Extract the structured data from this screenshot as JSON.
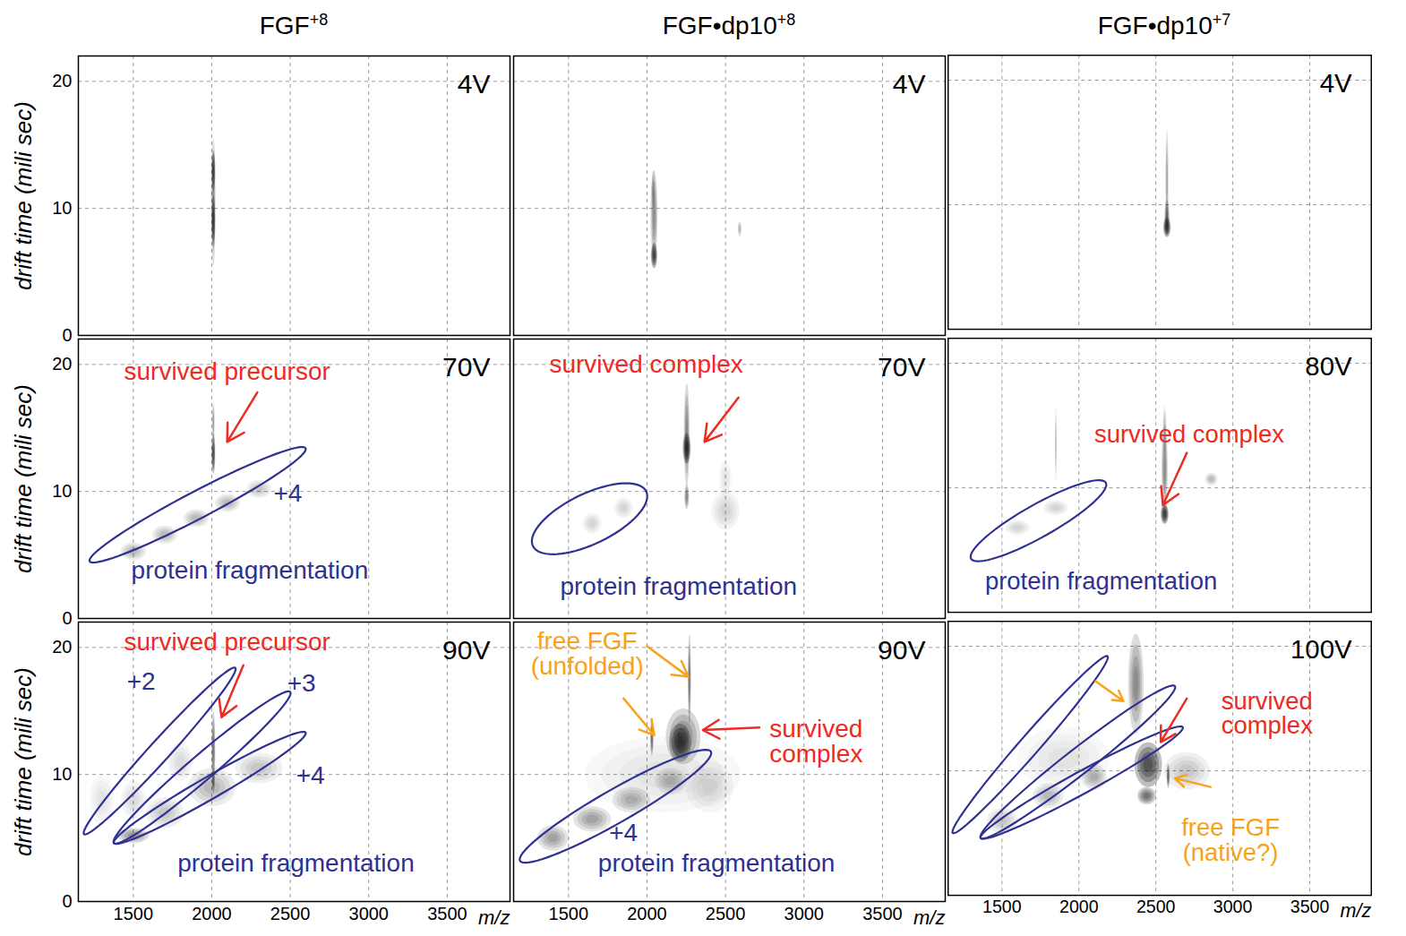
{
  "chart_data": [
    {
      "type": "density",
      "title": "FGF+8",
      "y_label": "drift time (mili sec)",
      "corner_label": "4V",
      "xlim": [
        1150,
        3900
      ],
      "ylim": [
        0,
        22
      ],
      "xticks": [
        1500,
        2000,
        2500,
        3000,
        3500
      ],
      "yticks": [
        0,
        10,
        20
      ],
      "grid": true,
      "tick_labels": "y",
      "color": "#111111",
      "spots": [
        {
          "x": 2010,
          "y": 10.5,
          "rx": 14,
          "ry": 5,
          "intensity": 0.45
        },
        {
          "x": 2010,
          "y": 13,
          "rx": 12,
          "ry": 1.6,
          "intensity": 0.8
        },
        {
          "x": 2010,
          "y": 9,
          "rx": 12,
          "ry": 2,
          "intensity": 0.85
        }
      ]
    },
    {
      "type": "density",
      "title": "FGF•dp10+8",
      "corner_label": "4V",
      "xlim": [
        1150,
        3900
      ],
      "ylim": [
        0,
        22
      ],
      "xticks": [
        1500,
        2000,
        2500,
        3000,
        3500
      ],
      "yticks": [
        0,
        10,
        20
      ],
      "grid": true,
      "tick_labels": false,
      "color": "#111111",
      "spots": [
        {
          "x": 2045,
          "y": 9.5,
          "rx": 22,
          "ry": 3.5,
          "intensity": 0.45
        },
        {
          "x": 2045,
          "y": 6.3,
          "rx": 20,
          "ry": 1.0,
          "intensity": 0.95
        },
        {
          "x": 2040,
          "y": 11.5,
          "rx": 12,
          "ry": 1.5,
          "intensity": 0.3
        },
        {
          "x": 2590,
          "y": 8.4,
          "rx": 12,
          "ry": 0.6,
          "intensity": 0.3
        }
      ]
    },
    {
      "type": "density",
      "title": "FGF•dp10+7",
      "corner_label": "4V",
      "xlim": [
        1150,
        3900
      ],
      "ylim": [
        0,
        22
      ],
      "xticks": [
        1500,
        2000,
        2500,
        3000,
        3500
      ],
      "yticks": [
        0,
        10,
        20
      ],
      "grid": true,
      "tick_labels": false,
      "color": "#111111",
      "spots": [
        {
          "x": 2572,
          "y": 12,
          "rx": 10,
          "ry": 4,
          "intensity": 0.35
        },
        {
          "x": 2572,
          "y": 8.2,
          "rx": 24,
          "ry": 0.8,
          "intensity": 0.95
        },
        {
          "x": 2572,
          "y": 9,
          "rx": 16,
          "ry": 1.4,
          "intensity": 0.6
        }
      ]
    },
    {
      "type": "density",
      "y_label": "drift time (mili sec)",
      "corner_label": "70V",
      "xlim": [
        1150,
        3900
      ],
      "ylim": [
        0,
        22
      ],
      "xticks": [
        1500,
        2000,
        2500,
        3000,
        3500
      ],
      "yticks": [
        0,
        10,
        20
      ],
      "grid": true,
      "tick_labels": "y",
      "color": "#111111",
      "spots": [
        {
          "x": 2010,
          "y": 13,
          "rx": 12,
          "ry": 1.6,
          "intensity": 0.9
        },
        {
          "x": 2010,
          "y": 15.5,
          "rx": 8,
          "ry": 1.5,
          "intensity": 0.4
        },
        {
          "x": 1500,
          "y": 5.3,
          "rx": 80,
          "ry": 0.7,
          "intensity": 0.25
        },
        {
          "x": 1700,
          "y": 6.6,
          "rx": 80,
          "ry": 0.7,
          "intensity": 0.25
        },
        {
          "x": 1900,
          "y": 7.9,
          "rx": 80,
          "ry": 0.7,
          "intensity": 0.25
        },
        {
          "x": 2100,
          "y": 9.1,
          "rx": 80,
          "ry": 0.7,
          "intensity": 0.25
        },
        {
          "x": 2300,
          "y": 10.2,
          "rx": 80,
          "ry": 0.7,
          "intensity": 0.2
        }
      ],
      "regions": [
        {
          "x1": 1222,
          "y1": 4.5,
          "x2": 2598,
          "y2": 13.4,
          "half_width": 1.2,
          "color": "#2e3192"
        }
      ],
      "annotations": [
        {
          "text": "survived precursor",
          "x": 2098,
          "y": 19.4,
          "color": "#ee2a24"
        },
        {
          "text": "+4",
          "x": 2485,
          "y": 9.8,
          "color": "#2e3192"
        },
        {
          "text": "protein fragmentation",
          "x": 2242,
          "y": 3.8,
          "color": "#2e3192"
        }
      ],
      "arrows": [
        {
          "x1": 2290,
          "y1": 17.8,
          "x2": 2098,
          "y2": 13.9,
          "color": "#ee2a24"
        }
      ]
    },
    {
      "type": "density",
      "corner_label": "70V",
      "xlim": [
        1150,
        3900
      ],
      "ylim": [
        0,
        22
      ],
      "xticks": [
        1500,
        2000,
        2500,
        3000,
        3500
      ],
      "yticks": [
        0,
        10,
        20
      ],
      "grid": true,
      "tick_labels": false,
      "color": "#111111",
      "spots": [
        {
          "x": 2253,
          "y": 13.4,
          "rx": 25,
          "ry": 1.2,
          "intensity": 1.0
        },
        {
          "x": 2253,
          "y": 14.5,
          "rx": 18,
          "ry": 4,
          "intensity": 0.5
        },
        {
          "x": 2253,
          "y": 9.6,
          "rx": 15,
          "ry": 1,
          "intensity": 0.5
        },
        {
          "x": 2500,
          "y": 8.5,
          "rx": 90,
          "ry": 1.5,
          "intensity": 0.15
        },
        {
          "x": 2500,
          "y": 11,
          "rx": 40,
          "ry": 1.5,
          "intensity": 0.1
        },
        {
          "x": 1650,
          "y": 7.5,
          "rx": 60,
          "ry": 0.8,
          "intensity": 0.15
        },
        {
          "x": 1850,
          "y": 8.7,
          "rx": 60,
          "ry": 0.8,
          "intensity": 0.15
        }
      ],
      "regions": [
        {
          "x1": 1273,
          "y1": 5.7,
          "x2": 1995,
          "y2": 10.0,
          "half_width": 2.2,
          "color": "#2e3192"
        }
      ],
      "annotations": [
        {
          "text": "survived complex",
          "x": 1995,
          "y": 20.0,
          "color": "#ee2a24"
        },
        {
          "text": "protein fragmentation",
          "x": 2201,
          "y": 2.5,
          "color": "#2e3192"
        }
      ],
      "arrows": [
        {
          "x1": 2583,
          "y1": 17.4,
          "x2": 2366,
          "y2": 13.9,
          "color": "#ee2a24"
        }
      ]
    },
    {
      "type": "density",
      "corner_label": "80V",
      "xlim": [
        1150,
        3900
      ],
      "ylim": [
        0,
        22
      ],
      "xticks": [
        1500,
        2000,
        2500,
        3000,
        3500
      ],
      "yticks": [
        0,
        10,
        20
      ],
      "grid": true,
      "tick_labels": false,
      "color": "#111111",
      "spots": [
        {
          "x": 2557,
          "y": 7.9,
          "rx": 25,
          "ry": 0.8,
          "intensity": 1.0
        },
        {
          "x": 2557,
          "y": 11.5,
          "rx": 20,
          "ry": 3.5,
          "intensity": 0.45
        },
        {
          "x": 2557,
          "y": 14.5,
          "rx": 12,
          "ry": 2,
          "intensity": 0.3
        },
        {
          "x": 2860,
          "y": 10.7,
          "rx": 40,
          "ry": 0.5,
          "intensity": 0.25
        },
        {
          "x": 1850,
          "y": 13.5,
          "rx": 6,
          "ry": 3,
          "intensity": 0.3
        },
        {
          "x": 1600,
          "y": 6.8,
          "rx": 80,
          "ry": 0.6,
          "intensity": 0.15
        },
        {
          "x": 1850,
          "y": 8.4,
          "rx": 80,
          "ry": 0.6,
          "intensity": 0.15
        }
      ],
      "regions": [
        {
          "x1": 1299,
          "y1": 4.3,
          "x2": 2175,
          "y2": 10.4,
          "half_width": 1.5,
          "color": "#2e3192"
        }
      ],
      "annotations": [
        {
          "text": "survived complex",
          "x": 2717,
          "y": 14.3,
          "color": "#ee2a24"
        },
        {
          "text": "protein fragmentation",
          "x": 2144,
          "y": 2.5,
          "color": "#2e3192"
        }
      ],
      "arrows": [
        {
          "x1": 2701,
          "y1": 12.8,
          "x2": 2546,
          "y2": 8.6,
          "color": "#ee2a24"
        }
      ]
    },
    {
      "type": "density",
      "y_label": "drift time (mili sec)",
      "x_label": "m/z",
      "corner_label": "90V",
      "xlim": [
        1150,
        3900
      ],
      "ylim": [
        0,
        22
      ],
      "xticks": [
        1500,
        2000,
        2500,
        3000,
        3500
      ],
      "yticks": [
        0,
        10,
        20
      ],
      "grid": true,
      "tick_labels": true,
      "color": "#111111",
      "spots": [
        {
          "x": 2010,
          "y": 12,
          "rx": 12,
          "ry": 3,
          "intensity": 0.6
        },
        {
          "x": 2010,
          "y": 9.5,
          "rx": 10,
          "ry": 1,
          "intensity": 0.5
        },
        {
          "x": 1500,
          "y": 5.2,
          "rx": 100,
          "ry": 0.6,
          "intensity": 0.4
        },
        {
          "x": 1700,
          "y": 7,
          "rx": 120,
          "ry": 1.2,
          "intensity": 0.2
        },
        {
          "x": 2000,
          "y": 9,
          "rx": 150,
          "ry": 1.5,
          "intensity": 0.25
        },
        {
          "x": 2300,
          "y": 10.5,
          "rx": 150,
          "ry": 1.2,
          "intensity": 0.2
        },
        {
          "x": 1500,
          "y": 8,
          "rx": 80,
          "ry": 1.5,
          "intensity": 0.12
        },
        {
          "x": 1800,
          "y": 11,
          "rx": 80,
          "ry": 1.5,
          "intensity": 0.12
        },
        {
          "x": 1300,
          "y": 8,
          "rx": 80,
          "ry": 2,
          "intensity": 0.08
        }
      ],
      "regions": [
        {
          "x1": 1186,
          "y1": 5.3,
          "x2": 2150,
          "y2": 18.4,
          "half_width": 1.2,
          "color": "#2e3192"
        },
        {
          "x1": 1376,
          "y1": 4.6,
          "x2": 2500,
          "y2": 16.5,
          "half_width": 1.3,
          "color": "#2e3192"
        },
        {
          "x1": 1376,
          "y1": 4.6,
          "x2": 2598,
          "y2": 13.3,
          "half_width": 1.0,
          "color": "#2e3192"
        }
      ],
      "annotations": [
        {
          "text": "survived precursor",
          "x": 2098,
          "y": 20.4,
          "color": "#ee2a24"
        },
        {
          "text": "+2",
          "x": 1550,
          "y": 17.3,
          "color": "#2e3192"
        },
        {
          "text": "+3",
          "x": 2572,
          "y": 17.2,
          "color": "#2e3192"
        },
        {
          "text": "+4",
          "x": 2629,
          "y": 9.9,
          "color": "#2e3192"
        },
        {
          "text": "protein fragmentation",
          "x": 2536,
          "y": 3.0,
          "color": "#2e3192"
        }
      ],
      "arrows": [
        {
          "x1": 2201,
          "y1": 18.6,
          "x2": 2062,
          "y2": 14.5,
          "color": "#ee2a24"
        }
      ]
    },
    {
      "type": "density",
      "x_label": "m/z",
      "corner_label": "90V",
      "xlim": [
        1150,
        3900
      ],
      "ylim": [
        0,
        22
      ],
      "xticks": [
        1500,
        2000,
        2500,
        3000,
        3500
      ],
      "yticks": [
        0,
        10,
        20
      ],
      "grid": true,
      "tick_labels": "x",
      "color": "#111111",
      "spots": [
        {
          "x": 2211,
          "y": 12.5,
          "rx": 70,
          "ry": 1.5,
          "intensity": 0.9
        },
        {
          "x": 2230,
          "y": 13,
          "rx": 110,
          "ry": 2.2,
          "intensity": 0.5
        },
        {
          "x": 2031,
          "y": 13,
          "rx": 10,
          "ry": 1.5,
          "intensity": 0.7
        },
        {
          "x": 2270,
          "y": 17.5,
          "rx": 10,
          "ry": 3.5,
          "intensity": 0.6
        },
        {
          "x": 1400,
          "y": 5,
          "rx": 100,
          "ry": 1,
          "intensity": 0.35
        },
        {
          "x": 1650,
          "y": 6.5,
          "rx": 120,
          "ry": 1,
          "intensity": 0.35
        },
        {
          "x": 1900,
          "y": 8,
          "rx": 120,
          "ry": 1,
          "intensity": 0.3
        },
        {
          "x": 2150,
          "y": 9.5,
          "rx": 100,
          "ry": 1,
          "intensity": 0.25
        },
        {
          "x": 2100,
          "y": 10,
          "rx": 500,
          "ry": 3,
          "intensity": 0.1
        },
        {
          "x": 2400,
          "y": 9,
          "rx": 150,
          "ry": 2,
          "intensity": 0.12
        }
      ],
      "regions": [
        {
          "x1": 1191,
          "y1": 3.2,
          "x2": 2407,
          "y2": 11.8,
          "half_width": 1.5,
          "color": "#2e3192"
        }
      ],
      "annotations": [
        {
          "text": "free FGF\n(unfolded)",
          "x": 1619,
          "y": 19.5,
          "color": "#f7a21b"
        },
        {
          "text": "survived\ncomplex",
          "x": 3077,
          "y": 12.6,
          "color": "#ee2a24"
        },
        {
          "text": "+4",
          "x": 1850,
          "y": 5.4,
          "color": "#2e3192"
        },
        {
          "text": "protein fragmentation",
          "x": 2443,
          "y": 3.0,
          "color": "#2e3192"
        }
      ],
      "arrows": [
        {
          "x1": 2000,
          "y1": 20.1,
          "x2": 2263,
          "y2": 17.7,
          "color": "#f7a21b"
        },
        {
          "x1": 1850,
          "y1": 16.0,
          "x2": 2046,
          "y2": 13.1,
          "color": "#f7a21b"
        },
        {
          "x1": 2716,
          "y1": 13.7,
          "x2": 2356,
          "y2": 13.5,
          "color": "#ee2a24"
        }
      ]
    },
    {
      "type": "density",
      "x_label": "m/z",
      "corner_label": "100V",
      "xlim": [
        1150,
        3900
      ],
      "ylim": [
        0,
        22
      ],
      "xticks": [
        1500,
        2000,
        2500,
        3000,
        3500
      ],
      "yticks": [
        0,
        10,
        20
      ],
      "grid": true,
      "tick_labels": "x",
      "color": "#111111",
      "spots": [
        {
          "x": 2450,
          "y": 10.5,
          "rx": 90,
          "ry": 1.8,
          "intensity": 0.85
        },
        {
          "x": 2440,
          "y": 8,
          "rx": 60,
          "ry": 0.7,
          "intensity": 0.6
        },
        {
          "x": 2370,
          "y": 17,
          "rx": 50,
          "ry": 4,
          "intensity": 0.45
        },
        {
          "x": 2580,
          "y": 9.6,
          "rx": 10,
          "ry": 1,
          "intensity": 0.7
        },
        {
          "x": 2700,
          "y": 10,
          "rx": 150,
          "ry": 1.5,
          "intensity": 0.2
        },
        {
          "x": 1500,
          "y": 6,
          "rx": 100,
          "ry": 1,
          "intensity": 0.2
        },
        {
          "x": 1800,
          "y": 8,
          "rx": 100,
          "ry": 1,
          "intensity": 0.25
        },
        {
          "x": 2100,
          "y": 9.5,
          "rx": 80,
          "ry": 1,
          "intensity": 0.3
        },
        {
          "x": 1900,
          "y": 11,
          "rx": 300,
          "ry": 2.5,
          "intensity": 0.08
        }
      ],
      "regions": [
        {
          "x1": 1180,
          "y1": 5.0,
          "x2": 2186,
          "y2": 19.2,
          "half_width": 1.2,
          "color": "#2e3192"
        },
        {
          "x1": 1361,
          "y1": 4.6,
          "x2": 2624,
          "y2": 16.8,
          "half_width": 1.3,
          "color": "#2e3192"
        },
        {
          "x1": 1361,
          "y1": 4.6,
          "x2": 2675,
          "y2": 13.5,
          "half_width": 1.0,
          "color": "#2e3192"
        }
      ],
      "annotations": [
        {
          "text": "survived\ncomplex",
          "x": 3222,
          "y": 14.6,
          "color": "#ee2a24"
        },
        {
          "text": "free FGF\n(native?)",
          "x": 2985,
          "y": 4.4,
          "color": "#f7a21b"
        }
      ],
      "arrows": [
        {
          "x1": 2108,
          "y1": 17.2,
          "x2": 2289,
          "y2": 15.6,
          "color": "#f7a21b"
        },
        {
          "x1": 2701,
          "y1": 15.8,
          "x2": 2531,
          "y2": 12.3,
          "color": "#ee2a24"
        },
        {
          "x1": 2856,
          "y1": 8.7,
          "x2": 2624,
          "y2": 9.4,
          "color": "#f7a21b"
        }
      ]
    }
  ]
}
